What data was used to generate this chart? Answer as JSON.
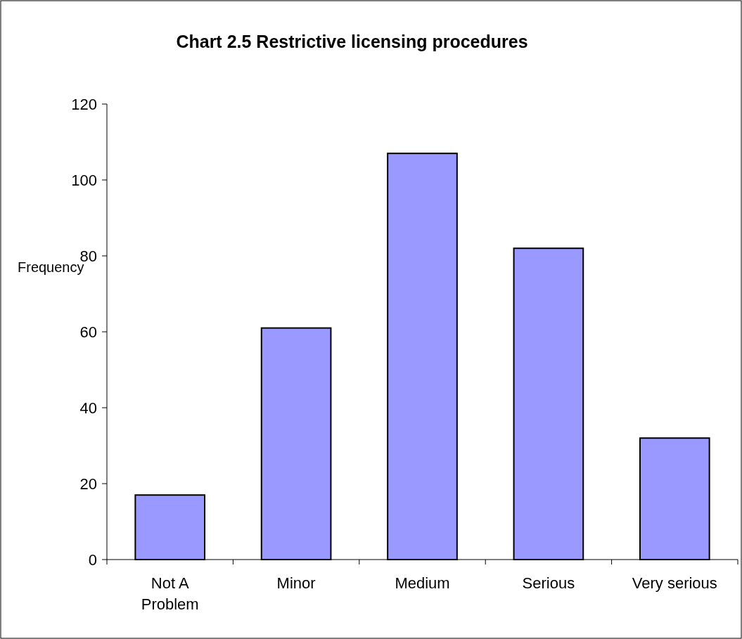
{
  "chart_data": {
    "type": "bar",
    "title": "Chart 2.5 Restrictive licensing procedures",
    "ylabel": "Frequency",
    "categories": [
      "Not A Problem",
      "Minor",
      "Medium",
      "Serious",
      "Very serious"
    ],
    "values": [
      17,
      61,
      107,
      82,
      32
    ],
    "color": "#9999ff",
    "ylim": [
      0,
      120
    ],
    "yticks": [
      0,
      20,
      40,
      60,
      80,
      100,
      120
    ],
    "grid": false
  }
}
